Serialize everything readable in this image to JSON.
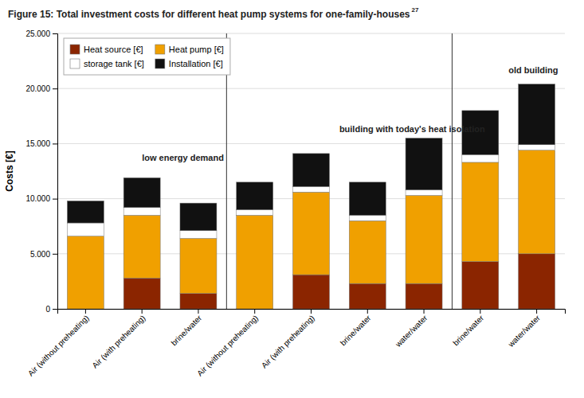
{
  "chart_data": {
    "type": "bar",
    "stacked": true,
    "title": "Figure 15: Total investment costs for different heat pump systems for one-family-houses",
    "y_label": "Costs [€]",
    "categories": [
      "Air (without preheating)",
      "Air (with preheating)",
      "brine/water",
      "Air (without preheating)",
      "Air (with preheating)",
      "brine/water",
      "water/water",
      "brine/water",
      "water/water"
    ],
    "series": [
      {
        "name": "Heat source [€]",
        "color": "#8B2500",
        "values": [
          0,
          2800,
          1400,
          0,
          3100,
          2300,
          2300,
          4300,
          5000
        ]
      },
      {
        "name": "Heat pump [€]",
        "color": "#F0A000",
        "values": [
          6600,
          5700,
          5000,
          8500,
          7500,
          5700,
          8000,
          9000,
          9400
        ]
      },
      {
        "name": "storage tank [€]",
        "color": "#FFFFFF",
        "values": [
          1200,
          700,
          700,
          500,
          500,
          500,
          500,
          700,
          500
        ]
      },
      {
        "name": "Installation [€]",
        "color": "#111111",
        "values": [
          2000,
          2700,
          2500,
          2500,
          3000,
          3000,
          4700,
          4000,
          5500
        ]
      }
    ],
    "ylim": [
      0,
      25000
    ],
    "yticks": [
      0,
      {
        "value": 5000,
        "label": "5.000"
      },
      {
        "value": 10000,
        "label": "10.000"
      },
      {
        "value": 15000,
        "label": "15.000"
      },
      {
        "value": 20000,
        "label": "20.000"
      },
      {
        "value": 25000,
        "label": "25.000"
      }
    ],
    "grid": true,
    "legend": "upper left",
    "annotations": [
      {
        "text": "low energy demand",
        "x": 1.0,
        "y": 13200
      },
      {
        "text": "building with today's heat isolation",
        "x": 4.5,
        "y": 15800
      },
      {
        "text": "old building",
        "x": 7.5,
        "y": 21200
      },
      {
        "text": "27"
      }
    ],
    "dividers": [
      2.5,
      6.5
    ]
  }
}
